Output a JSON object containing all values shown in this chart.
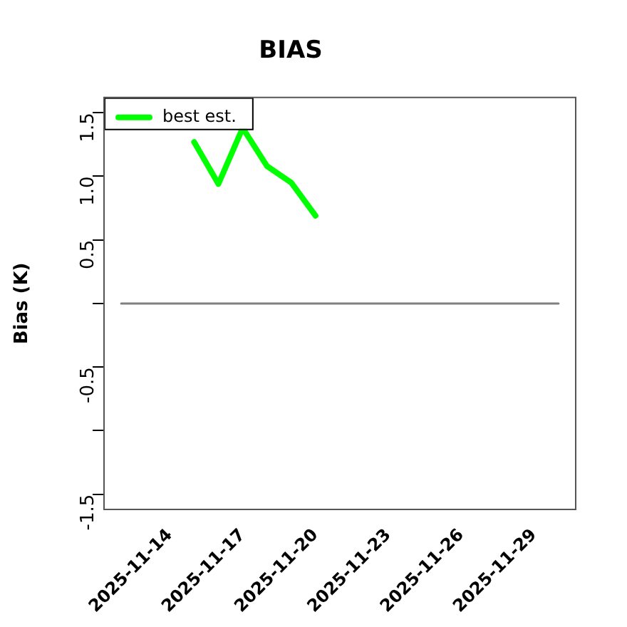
{
  "chart_data": {
    "type": "line",
    "title": "BIAS",
    "ylabel": "Bias (K)",
    "xlim": [
      "2025-11-11T07:00",
      "2025-11-30T17:00"
    ],
    "xticks": [
      "2025-11-14",
      "2025-11-17",
      "2025-11-20",
      "2025-11-23",
      "2025-11-26",
      "2025-11-29"
    ],
    "ylim": [
      -1.62,
      1.62
    ],
    "yticks": [
      1.5,
      {
        "value": 1,
        "label": "1.0"
      },
      0.5,
      {
        "value": 0,
        "label": null
      },
      -0.5,
      {
        "value": -1,
        "label": null
      },
      -1.5
    ],
    "series": [
      {
        "name": "best est.",
        "color": "#00ff00",
        "x": [
          "2025-11-15",
          "2025-11-16",
          "2025-11-17",
          "2025-11-18",
          "2025-11-19",
          "2025-11-20"
        ],
        "values": [
          1.27,
          0.94,
          1.38,
          1.08,
          0.95,
          0.69
        ]
      },
      {
        "color": "#808080",
        "x": [
          "2025-11-12",
          "2025-11-30"
        ],
        "values": [
          0,
          0
        ]
      }
    ],
    "grid": false,
    "legend": "top left",
    "marker": "none",
    "line_style": "solid"
  }
}
